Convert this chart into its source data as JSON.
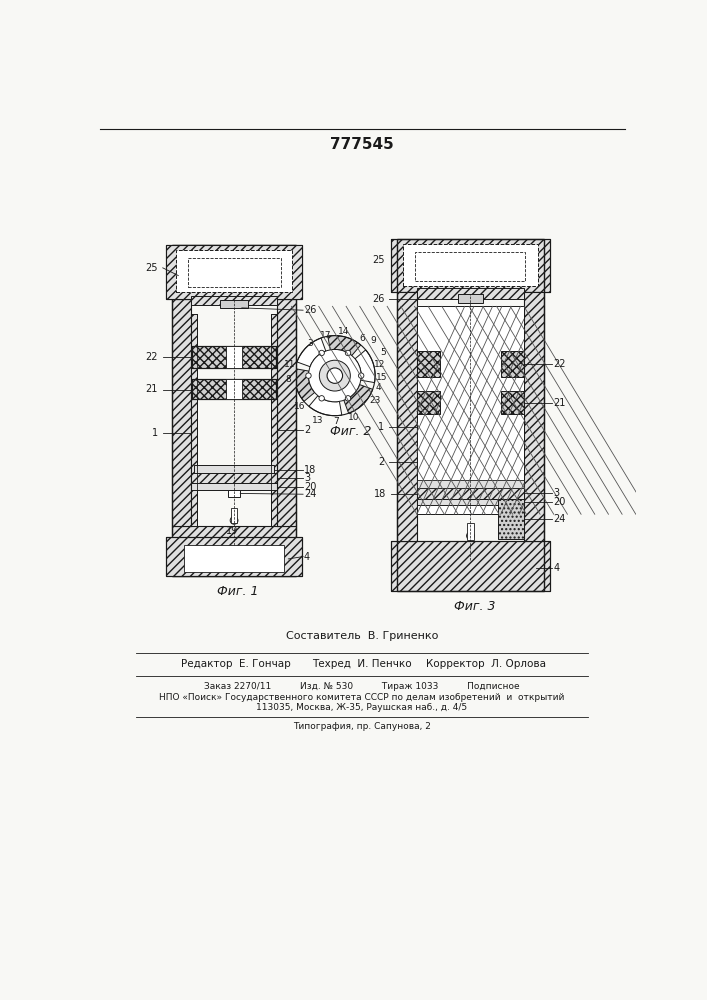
{
  "patent_number": "777545",
  "bg": "#f8f8f5",
  "lc": "#1a1a1a",
  "fig1_caption": "Фиг. 1",
  "fig2_caption": "Фиг. 2",
  "fig3_caption": "Фиг. 3",
  "footer_sestavitel": "Составитель  В. Гриненко",
  "footer_editor": "Редактор  Е. Гончар",
  "footer_tekhred": "Техред  И. Пенчко",
  "footer_korrektor": "Корректор  Л. Орлова",
  "footer_zakaz": "Заказ 2270/11          Изд. № 530          Тираж 1033          Подписное",
  "footer_npo": "НПО «Поиск» Государственного комитета СССР по делам изобретений  и  открытий",
  "footer_addr": "113035, Москва, Ж-35, Раушская наб., д. 4/5",
  "footer_tip": "Типография, пр. Сапунова, 2",
  "hatch_fc": "#e0e0e0",
  "hatch_fc2": "#d0d0d0"
}
